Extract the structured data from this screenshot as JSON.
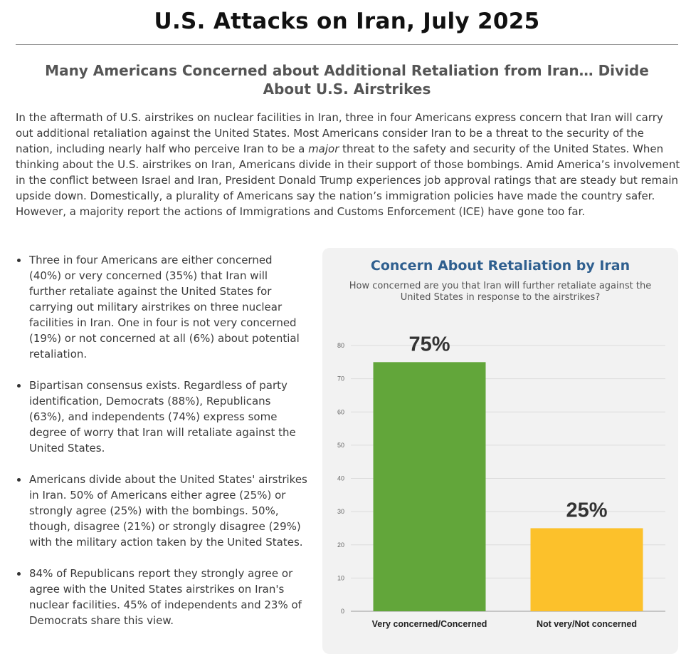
{
  "header": {
    "title": "U.S. Attacks on Iran, July 2025",
    "subtitle": "Many Americans Concerned about Additional Retaliation from Iran… Divide About U.S. Airstrikes"
  },
  "intro": {
    "part1": "In the aftermath of U.S. airstrikes on nuclear facilities in Iran, three in four Americans express concern that Iran will carry out additional retaliation against the United States. Most Americans consider Iran to be a threat to the security of the nation, including nearly half who perceive Iran to be a ",
    "emphasis": "major",
    "part2": " threat to the safety and security of the United States. When thinking about the U.S. airstrikes on Iran, Americans divide in their support of those bombings. Amid America’s involvement in the conflict between Israel and Iran, President Donald Trump experiences job approval ratings that are steady but remain upside down. Domestically, a plurality of Americans say the nation’s immigration policies have made the country safer. However, a majority report the actions of Immigrations and Customs Enforcement (ICE) have gone too far."
  },
  "bullets": [
    "Three in four Americans are either concerned (40%) or very concerned (35%) that Iran will further retaliate against the United States for carrying out military airstrikes on three nuclear facilities in Iran. One in four is not very concerned (19%) or not concerned at all (6%) about potential retaliation.",
    "Bipartisan consensus exists. Regardless of party identification, Democrats (88%), Republicans (63%), and independents (74%) express some degree of worry that Iran will retaliate against the United States.",
    "Americans divide about the United States' airstrikes in Iran. 50% of Americans either agree (25%) or strongly agree (25%) with the bombings. 50%, though, disagree (21%) or strongly disagree (29%) with the military action taken by the United States.",
    "84% of Republicans report they strongly agree or agree with the United States airstrikes on Iran's nuclear facilities. 45% of independents and 23% of Democrats share this view."
  ],
  "chart_data": {
    "type": "bar",
    "title": "Concern About Retaliation by Iran",
    "subtitle": "How concerned are you that Iran will further retaliate against the United States in response to the airstrikes?",
    "categories": [
      "Very concerned/Concerned",
      "Not very/Not concerned"
    ],
    "values": [
      75,
      25
    ],
    "data_labels": [
      "75%",
      "25%"
    ],
    "colors": [
      "#62a63a",
      "#fcc12b"
    ],
    "ylim": [
      0,
      80
    ],
    "yticks": [
      0,
      10,
      20,
      30,
      40,
      50,
      60,
      70,
      80
    ],
    "grid": true,
    "legend": "none"
  }
}
